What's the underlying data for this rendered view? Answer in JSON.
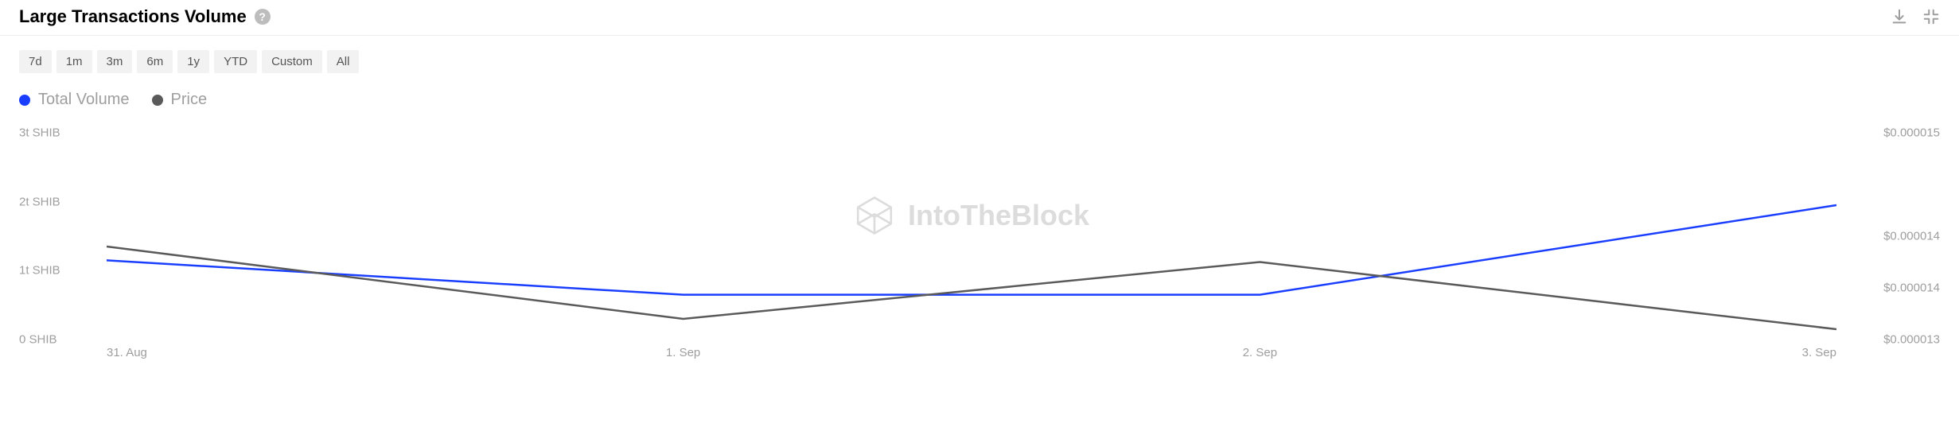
{
  "header": {
    "title": "Large Transactions Volume",
    "help_tooltip": "?"
  },
  "ranges": [
    "7d",
    "1m",
    "3m",
    "6m",
    "1y",
    "YTD",
    "Custom",
    "All"
  ],
  "legend": [
    {
      "label": "Total Volume",
      "color": "#1a3eff"
    },
    {
      "label": "Price",
      "color": "#5a5a5a"
    }
  ],
  "watermark": "IntoTheBlock",
  "chart": {
    "type": "line",
    "background_color": "#ffffff",
    "grid": false,
    "y_left": {
      "unit": "SHIB",
      "ticks": [
        0,
        1,
        2,
        3
      ],
      "tick_labels": [
        "0 SHIB",
        "1t SHIB",
        "2t SHIB",
        "3t SHIB"
      ],
      "min": 0,
      "max": 3
    },
    "y_right": {
      "ticks": [
        1.3e-05,
        1.35e-05,
        1.4e-05,
        1.5e-05
      ],
      "tick_labels": [
        "$0.000013",
        "$0.000014",
        "$0.000014",
        "$0.000015"
      ],
      "min": 1.3e-05,
      "max": 1.5e-05
    },
    "x": {
      "categories": [
        "31. Aug",
        "1. Sep",
        "2. Sep",
        "3. Sep"
      ],
      "positions_pct": [
        0,
        33.33,
        66.67,
        100
      ]
    },
    "series": [
      {
        "name": "Total Volume",
        "axis": "left",
        "color": "#1a3eff",
        "line_width": 2.5,
        "y_values": [
          1.15,
          0.65,
          0.65,
          1.95
        ]
      },
      {
        "name": "Price",
        "axis": "right",
        "color": "#5a5a5a",
        "line_width": 2.5,
        "y_values": [
          1.39e-05,
          1.32e-05,
          1.375e-05,
          1.31e-05
        ]
      }
    ]
  }
}
